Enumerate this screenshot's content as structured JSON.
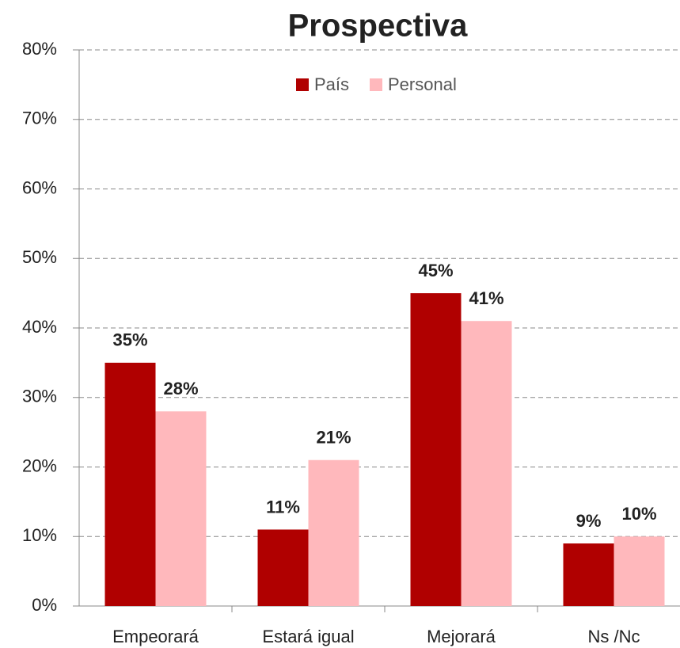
{
  "chart_data": {
    "type": "bar",
    "title": "Prospectiva",
    "categories": [
      "Empeorará",
      "Estará igual",
      "Mejorará",
      "Ns /Nc"
    ],
    "series": [
      {
        "name": "País",
        "color": "#b00000",
        "values": [
          35,
          11,
          45,
          9
        ],
        "value_labels": [
          "35%",
          "11%",
          "45%",
          "9%"
        ]
      },
      {
        "name": "Personal",
        "color": "#ffb8bc",
        "values": [
          28,
          21,
          41,
          10
        ],
        "value_labels": [
          "28%",
          "21%",
          "41%",
          "10%"
        ]
      }
    ],
    "ylim": [
      0,
      80
    ],
    "yticks": [
      {
        "value": 0,
        "label": "0%"
      },
      {
        "value": 10,
        "label": "10%"
      },
      {
        "value": 20,
        "label": "20%"
      },
      {
        "value": 30,
        "label": "30%"
      },
      {
        "value": 40,
        "label": "40%"
      },
      {
        "value": 50,
        "label": "50%"
      },
      {
        "value": 60,
        "label": "60%"
      },
      {
        "value": 70,
        "label": "70%"
      },
      {
        "value": 80,
        "label": "80%"
      }
    ],
    "grid": true,
    "legend": "top"
  }
}
